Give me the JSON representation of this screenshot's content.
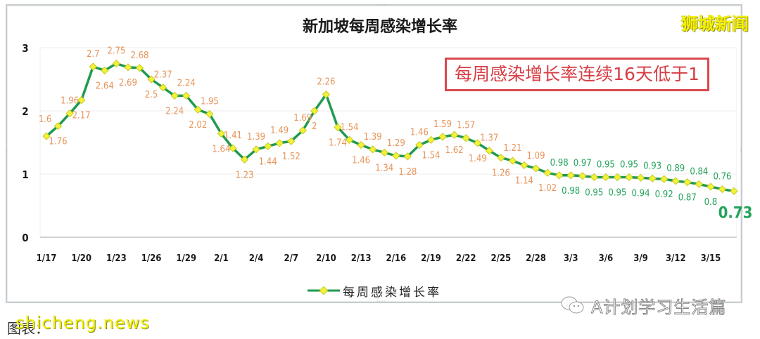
{
  "title": "新加坡每周感染增长率",
  "brand": "狮城新闻",
  "callout": "每周感染增长率连续16天低于1",
  "legend": {
    "label": "每周感染增长率"
  },
  "source": {
    "text": "图表：",
    "overlay": "shicheng.news"
  },
  "watermark": {
    "text": "A计划学习生活篇"
  },
  "colors": {
    "line": "#1f9a4e",
    "marker_fill": "#f2f23a",
    "marker_stroke": "#c9c920",
    "label_above_one": "#e8955a",
    "label_below_one": "#22a35a",
    "callout_border": "#d9484d",
    "callout_text": "#d63d44",
    "brand": "#f5f000"
  },
  "chart_data": {
    "type": "line",
    "title": "新加坡每周感染增长率",
    "xlabel": "",
    "ylabel": "",
    "ylim": [
      0,
      3
    ],
    "yticks": [
      0,
      1,
      2,
      3
    ],
    "grid": true,
    "legend_position": "bottom",
    "x_tick_labels": [
      "1/17",
      "1/20",
      "1/23",
      "1/26",
      "1/29",
      "2/1",
      "2/4",
      "2/7",
      "2/10",
      "2/13",
      "2/16",
      "2/19",
      "2/22",
      "2/25",
      "2/28",
      "3/3",
      "3/6",
      "3/9",
      "3/12",
      "3/15"
    ],
    "x": [
      "1/17",
      "1/18",
      "1/19",
      "1/20",
      "1/21",
      "1/22",
      "1/23",
      "1/24",
      "1/25",
      "1/26",
      "1/27",
      "1/28",
      "1/29",
      "1/30",
      "1/31",
      "2/1",
      "2/2",
      "2/3",
      "2/4",
      "2/5",
      "2/6",
      "2/7",
      "2/8",
      "2/9",
      "2/10",
      "2/11",
      "2/12",
      "2/13",
      "2/14",
      "2/15",
      "2/16",
      "2/17",
      "2/18",
      "2/19",
      "2/20",
      "2/21",
      "2/22",
      "2/23",
      "2/24",
      "2/25",
      "2/26",
      "2/27",
      "2/28",
      "3/1",
      "3/2",
      "3/3",
      "3/4",
      "3/5",
      "3/6",
      "3/7",
      "3/8",
      "3/9",
      "3/10",
      "3/11",
      "3/12",
      "3/13",
      "3/14",
      "3/15",
      "3/16",
      "3/17"
    ],
    "series": [
      {
        "name": "每周感染增长率",
        "values": [
          1.6,
          1.76,
          1.96,
          2.17,
          2.7,
          2.64,
          2.75,
          2.69,
          2.68,
          2.5,
          2.37,
          2.24,
          2.24,
          2.02,
          1.95,
          1.64,
          1.41,
          1.23,
          1.39,
          1.44,
          1.49,
          1.52,
          1.69,
          2,
          2.26,
          1.74,
          1.54,
          1.46,
          1.39,
          1.34,
          1.29,
          1.28,
          1.46,
          1.54,
          1.59,
          1.62,
          1.57,
          1.49,
          1.37,
          1.26,
          1.21,
          1.14,
          1.09,
          1.02,
          0.98,
          0.98,
          0.97,
          0.95,
          0.95,
          0.95,
          0.95,
          0.94,
          0.93,
          0.92,
          0.89,
          0.87,
          0.84,
          0.8,
          0.76,
          0.73
        ]
      }
    ],
    "annotations": [
      "每周感染增长率连续16天低于1",
      "0.73"
    ]
  }
}
